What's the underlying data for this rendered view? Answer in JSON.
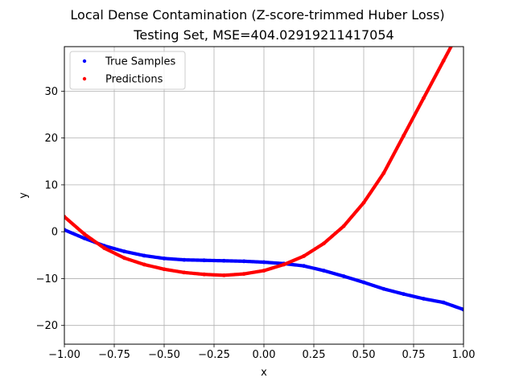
{
  "chart_data": {
    "type": "scatter",
    "title": "Local Dense Contamination (Z-score-trimmed Huber Loss)",
    "subtitle": "Testing Set, MSE=404.02919211417054",
    "xlabel": "x",
    "ylabel": "y",
    "xlim": [
      -1.0,
      1.0
    ],
    "ylim": [
      -24,
      39.5
    ],
    "grid": true,
    "legend_position": "top-left",
    "x_ticks": [
      -1.0,
      -0.75,
      -0.5,
      -0.25,
      0.0,
      0.25,
      0.5,
      0.75,
      1.0
    ],
    "x_tick_labels": [
      "−1.00",
      "−0.75",
      "−0.50",
      "−0.25",
      "0.00",
      "0.25",
      "0.50",
      "0.75",
      "1.00"
    ],
    "y_ticks": [
      -20,
      -10,
      0,
      10,
      20,
      30
    ],
    "y_tick_labels": [
      "−20",
      "−10",
      "0",
      "10",
      "20",
      "30"
    ],
    "series": [
      {
        "name": "True Samples",
        "color": "#0000ff",
        "x": [
          -1.0,
          -0.9,
          -0.8,
          -0.7,
          -0.6,
          -0.5,
          -0.4,
          -0.3,
          -0.2,
          -0.1,
          0.0,
          0.1,
          0.2,
          0.3,
          0.4,
          0.5,
          0.6,
          0.7,
          0.8,
          0.9,
          1.0
        ],
        "y": [
          0.4,
          -1.4,
          -3.0,
          -4.2,
          -5.1,
          -5.7,
          -6.0,
          -6.1,
          -6.2,
          -6.3,
          -6.5,
          -6.8,
          -7.3,
          -8.3,
          -9.5,
          -10.8,
          -12.2,
          -13.3,
          -14.3,
          -15.1,
          -16.6
        ]
      },
      {
        "name": "Predictions",
        "color": "#ff0000",
        "x": [
          -1.0,
          -0.9,
          -0.8,
          -0.7,
          -0.6,
          -0.5,
          -0.4,
          -0.3,
          -0.2,
          -0.1,
          0.0,
          0.1,
          0.2,
          0.3,
          0.4,
          0.5,
          0.6,
          0.7,
          0.8,
          0.9,
          0.95
        ],
        "y": [
          3.2,
          -0.5,
          -3.5,
          -5.6,
          -7.0,
          -8.0,
          -8.7,
          -9.1,
          -9.3,
          -9.0,
          -8.3,
          -7.0,
          -5.2,
          -2.5,
          1.2,
          6.2,
          12.5,
          20.5,
          28.5,
          36.5,
          40.5
        ]
      }
    ]
  }
}
